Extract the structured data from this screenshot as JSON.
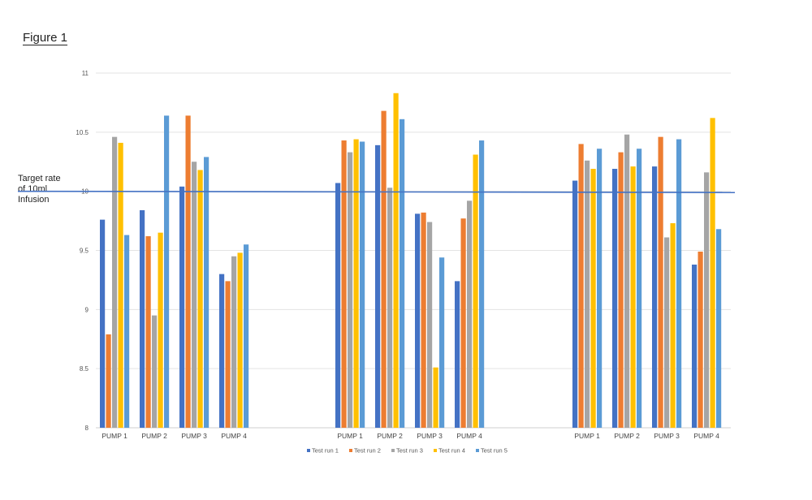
{
  "figure_title": "Figure 1",
  "target_label": "Target rate\nof 10ml\nInfusion",
  "chart_data": {
    "type": "bar",
    "y_ticks": [
      "8",
      "8.5",
      "9",
      "9.5",
      "10",
      "10.5",
      "11"
    ],
    "ylim": [
      8,
      11
    ],
    "grid": true,
    "legend_placement": "bottom",
    "reference_line": {
      "y": 10,
      "color": "#4472C4"
    },
    "series": [
      {
        "name": "Test run 1",
        "color": "#4472C4"
      },
      {
        "name": "Test run 2",
        "color": "#ED7D31"
      },
      {
        "name": "Test run 3",
        "color": "#A5A5A5"
      },
      {
        "name": "Test run 4",
        "color": "#FFC000"
      },
      {
        "name": "Test run 5",
        "color": "#5B9BD5"
      }
    ],
    "groups": [
      {
        "categories": [
          "PUMP 1",
          "PUMP 2",
          "PUMP 3",
          "PUMP 4"
        ],
        "values": [
          [
            9.76,
            8.79,
            10.46,
            10.41,
            9.63
          ],
          [
            9.84,
            9.62,
            8.95,
            9.65,
            10.64
          ],
          [
            10.04,
            10.64,
            10.25,
            10.18,
            10.29
          ],
          [
            9.3,
            9.24,
            9.45,
            9.48,
            9.55
          ]
        ]
      },
      {
        "categories": [
          "PUMP 1",
          "PUMP 2",
          "PUMP 3",
          "PUMP 4"
        ],
        "values": [
          [
            10.07,
            10.43,
            10.33,
            10.44,
            10.42
          ],
          [
            10.39,
            10.68,
            10.03,
            10.83,
            10.61
          ],
          [
            9.81,
            9.82,
            9.74,
            8.51,
            9.44
          ],
          [
            9.24,
            9.77,
            9.92,
            10.31,
            10.43
          ]
        ]
      },
      {
        "categories": [
          "PUMP 1",
          "PUMP 2",
          "PUMP 3",
          "PUMP 4"
        ],
        "values": [
          [
            10.09,
            10.4,
            10.26,
            10.19,
            10.36
          ],
          [
            10.19,
            10.33,
            10.48,
            10.21,
            10.36
          ],
          [
            10.21,
            10.46,
            9.61,
            9.73,
            10.44
          ],
          [
            9.38,
            9.49,
            10.16,
            10.62,
            9.68
          ]
        ]
      }
    ]
  }
}
